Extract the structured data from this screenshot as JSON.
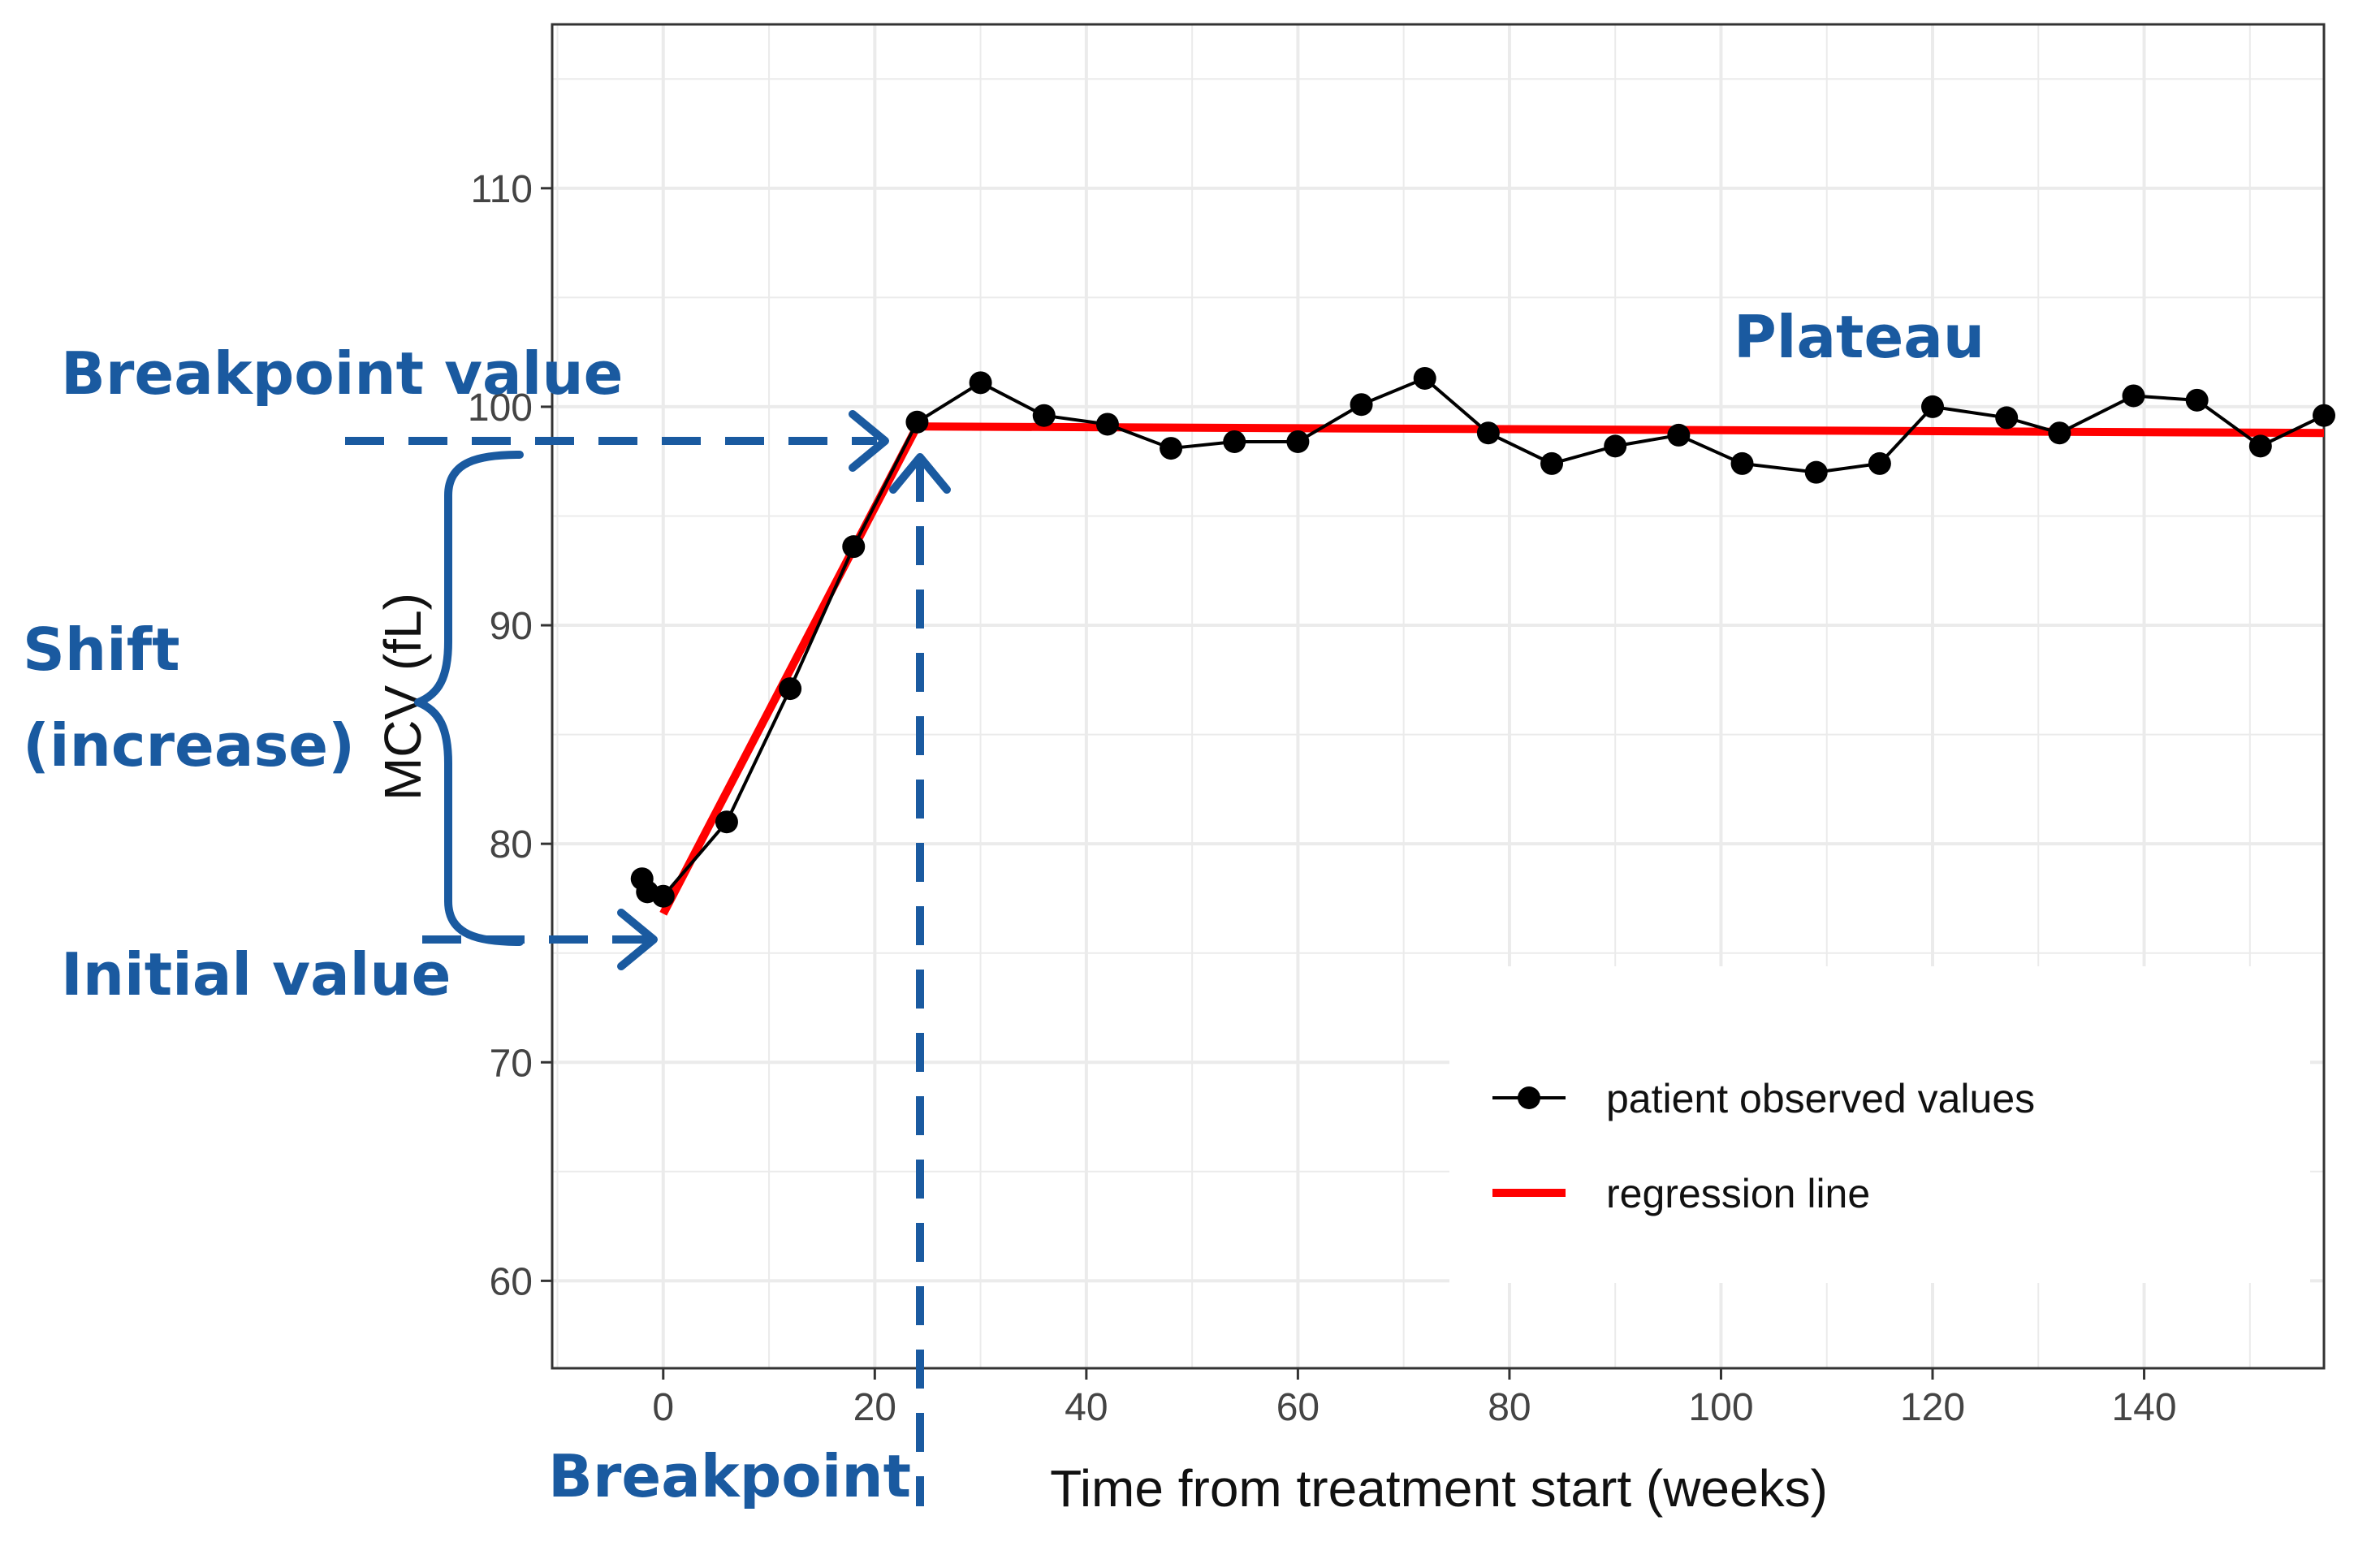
{
  "chart_data": {
    "type": "line",
    "xlabel": "Time from treatment start (weeks)",
    "ylabel": "MCV (fL)",
    "xlim": [
      -10.5,
      157
    ],
    "ylim": [
      56,
      117.5
    ],
    "xticks": [
      0,
      20,
      40,
      60,
      80,
      100,
      120,
      140
    ],
    "yticks": [
      60,
      70,
      80,
      90,
      100,
      110
    ],
    "grid": true,
    "series": [
      {
        "name": "patient observed values",
        "color": "#000000",
        "marker": "circle",
        "x": [
          -2,
          -1.5,
          0,
          6,
          12,
          18,
          24,
          30,
          36,
          42,
          48,
          54,
          60,
          66,
          72,
          78,
          84,
          90,
          96,
          102,
          109,
          115,
          120,
          127,
          132,
          139,
          145,
          151,
          157
        ],
        "y": [
          78.4,
          77.8,
          77.6,
          81,
          87.1,
          93.6,
          99.3,
          101.1,
          99.6,
          99.2,
          98.1,
          98.4,
          98.4,
          100.1,
          101.3,
          98.8,
          97.4,
          98.2,
          98.7,
          97.4,
          97.0,
          97.4,
          100,
          99.5,
          98.8,
          100.5,
          100.3,
          98.2,
          99.6
        ]
      },
      {
        "name": "regression line",
        "color": "#ff0000",
        "x": [
          0,
          24,
          157
        ],
        "y": [
          76.8,
          99.1,
          98.8
        ]
      }
    ],
    "legend_position": "bottom-right",
    "annotations": {
      "breakpoint_value": "Breakpoint  value",
      "plateau": "Plateau",
      "shift": [
        "Shift",
        "(increase)"
      ],
      "initial_value": "Initial value",
      "breakpoint": "Breakpoint"
    },
    "annotation_color": "#1a5aa0"
  }
}
